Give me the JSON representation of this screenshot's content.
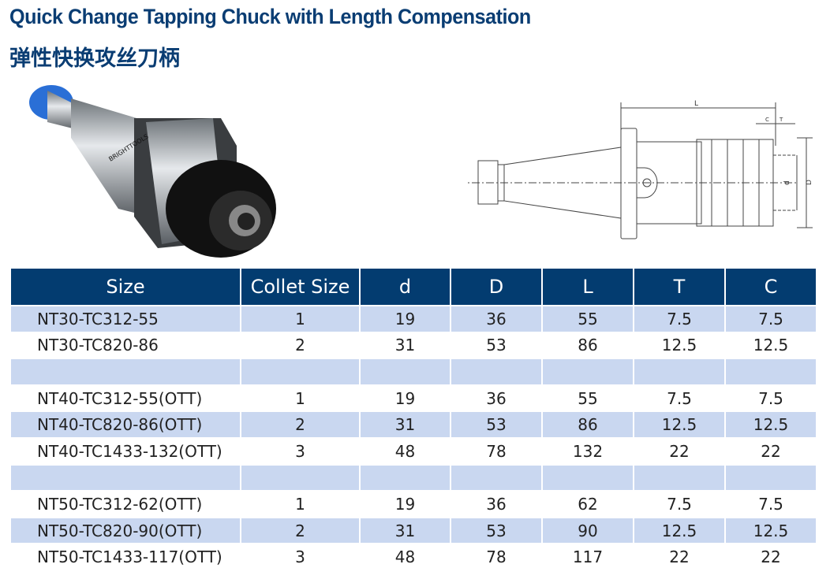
{
  "title": "Quick Change Tapping Chuck with Length Compensation",
  "subtitle": "弹性快换攻丝刀柄",
  "photo": {
    "brand_text": "BRIGHTTOOLS"
  },
  "drawing": {
    "labels": {
      "L": "L",
      "C": "C",
      "T": "T",
      "d": "d",
      "D": "D"
    }
  },
  "colors": {
    "header": "#033c70",
    "stripe": "#c9d7f0",
    "title": "#0a3d73"
  },
  "table": {
    "headers": [
      "Size",
      "Collet Size",
      "d",
      "D",
      "L",
      "T",
      "C"
    ],
    "rows": [
      [
        "NT30-TC312-55",
        "1",
        "19",
        "36",
        "55",
        "7.5",
        "7.5"
      ],
      [
        "NT30-TC820-86",
        "2",
        "31",
        "53",
        "86",
        "12.5",
        "12.5"
      ],
      [
        "",
        "",
        "",
        "",
        "",
        "",
        ""
      ],
      [
        "NT40-TC312-55(OTT)",
        "1",
        "19",
        "36",
        "55",
        "7.5",
        "7.5"
      ],
      [
        "NT40-TC820-86(OTT)",
        "2",
        "31",
        "53",
        "86",
        "12.5",
        "12.5"
      ],
      [
        "NT40-TC1433-132(OTT)",
        "3",
        "48",
        "78",
        "132",
        "22",
        "22"
      ],
      [
        "",
        "",
        "",
        "",
        "",
        "",
        ""
      ],
      [
        "NT50-TC312-62(OTT)",
        "1",
        "19",
        "36",
        "62",
        "7.5",
        "7.5"
      ],
      [
        "NT50-TC820-90(OTT)",
        "2",
        "31",
        "53",
        "90",
        "12.5",
        "12.5"
      ],
      [
        "NT50-TC1433-117(OTT)",
        "3",
        "48",
        "78",
        "117",
        "22",
        "22"
      ]
    ]
  }
}
